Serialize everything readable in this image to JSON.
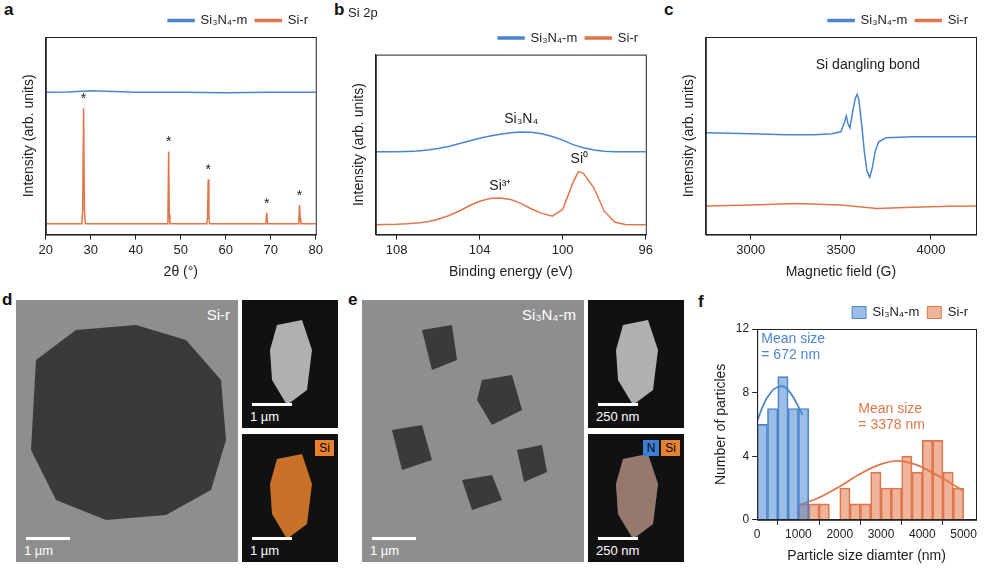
{
  "chart_data": [
    {
      "panel_label": "a",
      "type": "line",
      "x_label": "2θ (°)",
      "y_label": "Intensity (arb. units)",
      "xlim": [
        20,
        80
      ],
      "xticks": [
        20,
        30,
        40,
        50,
        60,
        70,
        80
      ],
      "ylim": [
        0,
        10
      ],
      "yticks": [],
      "tick_labels": "x",
      "grid": false,
      "legend": "top",
      "series": [
        {
          "name": "Si₃N₄-m",
          "color": "#4a86d0",
          "x": [
            20,
            25,
            30,
            35,
            40,
            50,
            60,
            70,
            80
          ],
          "values": [
            7.2,
            7.22,
            7.28,
            7.24,
            7.2,
            7.2,
            7.18,
            7.2,
            7.2
          ]
        },
        {
          "name": "Si-r",
          "color": "#e0764a",
          "x": [
            20,
            28.0,
            28.2,
            28.4,
            28.6,
            28.8,
            47.0,
            47.15,
            47.3,
            47.45,
            47.6,
            55.8,
            55.95,
            56.1,
            56.25,
            56.4,
            68.9,
            69.1,
            69.3,
            76.1,
            76.25,
            76.4,
            76.55,
            76.7,
            80
          ],
          "values": [
            0.55,
            0.55,
            1.2,
            6.4,
            1.2,
            0.55,
            0.55,
            1.0,
            4.2,
            1.0,
            0.55,
            0.55,
            0.9,
            2.8,
            0.9,
            0.55,
            0.55,
            1.1,
            0.55,
            0.55,
            0.8,
            1.5,
            0.8,
            0.55,
            0.55
          ]
        }
      ],
      "annotations": [
        {
          "text": "*",
          "x": 28.4,
          "y": 6.5
        },
        {
          "text": "*",
          "x": 47.3,
          "y": 4.3
        },
        {
          "text": "*",
          "x": 56.1,
          "y": 2.9
        },
        {
          "text": "*",
          "x": 69.1,
          "y": 1.2
        },
        {
          "text": "*",
          "x": 76.4,
          "y": 1.6
        }
      ]
    },
    {
      "panel_label": "b",
      "type": "line",
      "title": "Si 2p",
      "x_label": "Binding energy (eV)",
      "y_label": "Intensity (arb. units)",
      "xlim": [
        109,
        96
      ],
      "xticks": [
        108,
        104,
        100,
        96
      ],
      "ylim": [
        0,
        10
      ],
      "yticks": [],
      "tick_labels": "x",
      "grid": false,
      "legend": "top",
      "series": [
        {
          "name": "Si₃N₄-m",
          "color": "#4a86d0",
          "x": [
            109,
            108.5,
            108,
            107.5,
            107,
            106.5,
            106,
            105.5,
            105,
            104.5,
            104,
            103.5,
            103,
            102.5,
            102,
            101.5,
            101,
            100.5,
            100,
            99.5,
            99,
            98.5,
            98,
            97.5,
            97,
            96.5,
            96
          ],
          "values": [
            4.6,
            4.6,
            4.6,
            4.62,
            4.65,
            4.7,
            4.78,
            4.9,
            5.05,
            5.2,
            5.35,
            5.48,
            5.58,
            5.66,
            5.7,
            5.68,
            5.6,
            5.45,
            5.25,
            5.0,
            4.82,
            4.7,
            4.63,
            4.6,
            4.6,
            4.6,
            4.6
          ]
        },
        {
          "name": "Si-r",
          "color": "#e0764a",
          "x": [
            109,
            108.5,
            108,
            107.5,
            107,
            106.5,
            106,
            105.5,
            105,
            104.5,
            104,
            103.5,
            103,
            102.5,
            102,
            101.5,
            101,
            100.5,
            100,
            99.5,
            99.25,
            99,
            98.5,
            98,
            97.5,
            97,
            96.5,
            96
          ],
          "values": [
            0.55,
            0.56,
            0.57,
            0.6,
            0.65,
            0.72,
            0.85,
            1.05,
            1.3,
            1.6,
            1.85,
            2.0,
            2.03,
            1.95,
            1.72,
            1.42,
            1.18,
            1.02,
            1.4,
            2.9,
            3.5,
            3.4,
            2.6,
            1.3,
            0.7,
            0.56,
            0.55,
            0.55
          ]
        }
      ],
      "annotations": [
        {
          "text": "Si₃N₄",
          "x": 102,
          "y": 6.0
        },
        {
          "text": "Si³⁺",
          "x": 103,
          "y": 2.3
        },
        {
          "text": "Si⁰",
          "x": 99.2,
          "y": 3.8
        }
      ]
    },
    {
      "panel_label": "c",
      "type": "line",
      "x_label": "Magnetic field (G)",
      "y_label": "Intensity (arb. units)",
      "xlim": [
        2750,
        4250
      ],
      "xticks": [
        3000,
        3500,
        4000
      ],
      "ylim": [
        0,
        10
      ],
      "yticks": [],
      "tick_labels": "x",
      "grid": false,
      "legend": "top",
      "series": [
        {
          "name": "Si₃N₄-m",
          "color": "#4a86d0",
          "x": [
            2750,
            3000,
            3200,
            3350,
            3450,
            3500,
            3520,
            3530,
            3540,
            3550,
            3565,
            3580,
            3590,
            3600,
            3615,
            3630,
            3645,
            3660,
            3675,
            3690,
            3710,
            3750,
            3900,
            4100,
            4250
          ],
          "values": [
            5.15,
            5.1,
            5.05,
            5.05,
            5.1,
            5.2,
            5.7,
            6.0,
            5.6,
            5.4,
            6.2,
            6.9,
            7.1,
            6.8,
            5.6,
            4.2,
            3.2,
            2.9,
            3.4,
            4.2,
            4.7,
            4.9,
            4.95,
            4.95,
            4.95
          ]
        },
        {
          "name": "Si-r",
          "color": "#e0764a",
          "x": [
            2750,
            3000,
            3250,
            3500,
            3700,
            3900,
            4100,
            4250
          ],
          "values": [
            1.45,
            1.5,
            1.58,
            1.5,
            1.32,
            1.38,
            1.43,
            1.45
          ]
        }
      ],
      "annotations": [
        {
          "text": "Si dangling bond",
          "x": 3650,
          "y": 8.2
        }
      ]
    },
    {
      "panel_label": "f",
      "type": "histogram",
      "x_label": "Particle size diamter (nm)",
      "y_label": "Number of particles",
      "xlim": [
        0,
        5300
      ],
      "xticks": [
        0,
        1000,
        2000,
        3000,
        4000,
        5000
      ],
      "ylim": [
        0,
        12
      ],
      "yticks": [
        0,
        4,
        8,
        12
      ],
      "grid": false,
      "legend": "top",
      "series": [
        {
          "name": "Si₃N₄-m",
          "color": "#4a86d0",
          "bins": [
            0,
            250,
            500,
            750,
            1000,
            1250
          ],
          "counts": [
            6,
            7,
            9,
            7,
            7
          ],
          "fit_x": [
            0,
            100,
            200,
            300,
            400,
            500,
            600,
            700,
            800,
            900,
            1000,
            1100
          ],
          "fit_values": [
            6.2,
            6.9,
            7.5,
            7.9,
            8.2,
            8.35,
            8.4,
            8.3,
            8.0,
            7.6,
            7.1,
            6.6
          ]
        },
        {
          "name": "Si-r",
          "color": "#e0764a",
          "bins": [
            1000,
            1250,
            1500,
            1750,
            2000,
            2250,
            2500,
            2750,
            3000,
            3250,
            3500,
            3750,
            4000,
            4250,
            4500,
            4750,
            5000
          ],
          "counts": [
            1,
            1,
            1,
            0,
            2,
            1,
            1,
            3,
            2,
            2,
            4,
            3,
            5,
            5,
            3,
            2
          ],
          "fit_x": [
            1000,
            1500,
            2000,
            2500,
            3000,
            3378,
            3750,
            4000,
            4500,
            5000
          ],
          "fit_values": [
            0.9,
            1.4,
            2.1,
            2.9,
            3.5,
            3.7,
            3.55,
            3.3,
            2.6,
            1.8
          ]
        }
      ],
      "annotations": [
        {
          "text": [
            "Mean size",
            "= 672 nm"
          ],
          "x": 100,
          "y": 11.8,
          "color": "#4a86d0"
        },
        {
          "text": [
            "Mean size",
            "= 3378 nm"
          ],
          "x": 2450,
          "y": 7.4,
          "color": "#e0764a"
        }
      ]
    }
  ],
  "images": [
    {
      "panel_label": "d",
      "title": "Si-r",
      "scale_bars": {
        "main": "1 µm",
        "top": "1 µm",
        "bottom": "1 µm"
      },
      "map_legend": [
        {
          "text": "Si",
          "color": "#e8822e"
        }
      ]
    },
    {
      "panel_label": "e",
      "title": "Si₃N₄-m",
      "scale_bars": {
        "main": "1 µm",
        "top": "250 nm",
        "bottom": "250 nm"
      },
      "map_legend": [
        {
          "text": "N",
          "color": "#3d7fd6"
        },
        {
          "text": "Si",
          "color": "#e8822e"
        }
      ]
    }
  ]
}
